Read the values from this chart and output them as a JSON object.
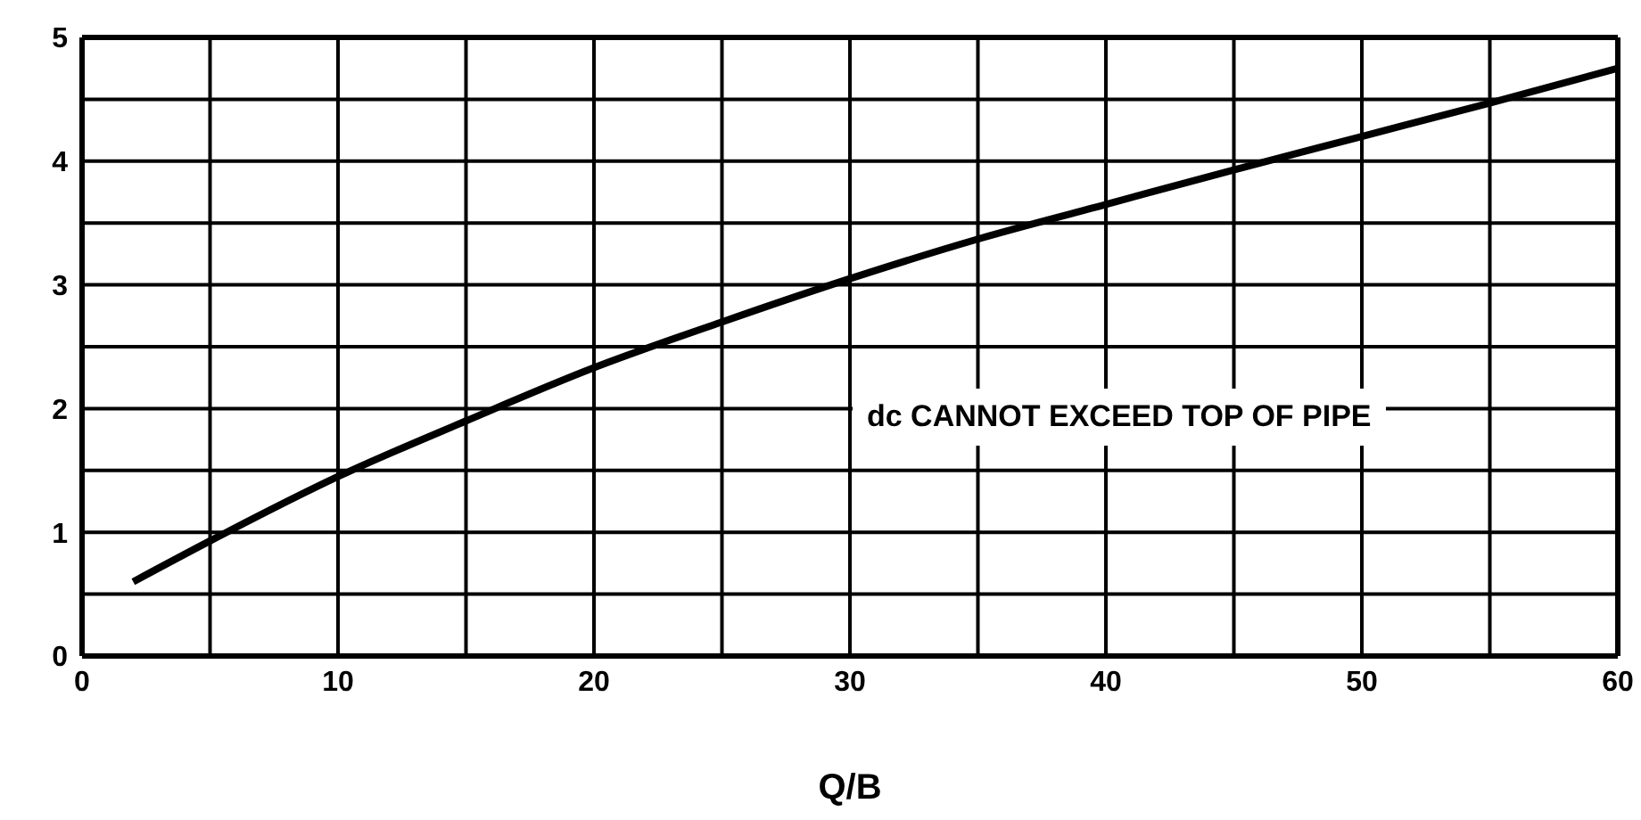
{
  "chart_data": {
    "type": "line",
    "xlabel": "Q/B",
    "x": [
      2,
      5,
      10,
      15,
      20,
      25,
      30,
      35,
      40,
      45,
      50,
      55,
      60
    ],
    "series": [
      {
        "color": "#000000",
        "values": [
          0.6,
          0.93,
          1.45,
          1.9,
          2.33,
          2.7,
          3.05,
          3.37,
          3.65,
          3.93,
          4.2,
          4.47,
          4.75
        ]
      }
    ],
    "xlim": [
      0,
      60
    ],
    "xticks": [
      0,
      {
        "value": 5,
        "label": null
      },
      10,
      {
        "value": 15,
        "label": null
      },
      20,
      {
        "value": 25,
        "label": null
      },
      30,
      {
        "value": 35,
        "label": null
      },
      40,
      {
        "value": 45,
        "label": null
      },
      50,
      {
        "value": 55,
        "label": null
      },
      60
    ],
    "ylim": [
      0,
      5
    ],
    "yticks": [
      0,
      {
        "value": 0.5,
        "label": null
      },
      1,
      {
        "value": 1.5,
        "label": null
      },
      2,
      {
        "value": 2.5,
        "label": null
      },
      3,
      {
        "value": 3.5,
        "label": null
      },
      4,
      {
        "value": 4.5,
        "label": null
      },
      5
    ],
    "grid": true,
    "marker": "none",
    "line_style": "solid",
    "annotations": [
      "dc CANNOT EXCEED TOP OF PIPE"
    ]
  }
}
